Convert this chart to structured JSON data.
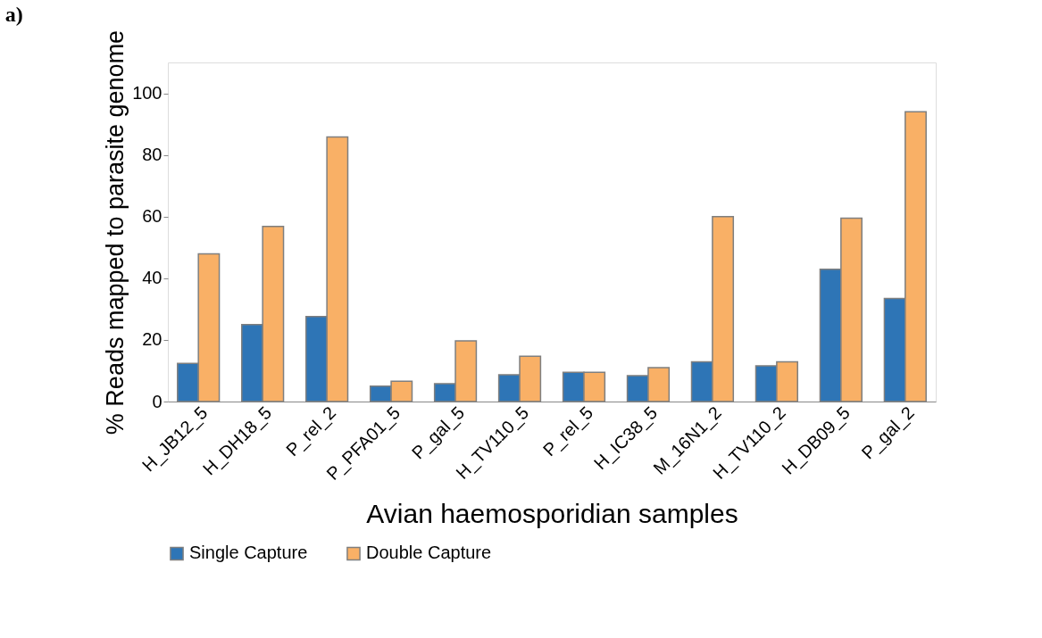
{
  "chart_data": {
    "type": "bar",
    "xlabel": "Avian haemosporidian samples",
    "ylabel": "% Reads mapped to parasite genome",
    "categories": [
      "H_JB12_5",
      "H_DH18_5",
      "P_rel_2",
      "P_PFA01_5",
      "P_gal_5",
      "H_TV110_5",
      "P_rel_5",
      "H_IC38_5",
      "M_16N1_2",
      "H_TV110_2",
      "H_DB09_5",
      "P_gal_2"
    ],
    "series": [
      {
        "name": "Single Capture",
        "color": "#2e75b6",
        "values": [
          12.4,
          25,
          27.6,
          5,
          5.8,
          8.7,
          9.5,
          8.4,
          12.9,
          11.6,
          42.9,
          33.4
        ]
      },
      {
        "name": "Double Capture",
        "color": "#f9b066",
        "values": [
          47.9,
          56.8,
          85.8,
          6.6,
          19.7,
          14.7,
          9.5,
          11,
          60,
          12.9,
          59.5,
          94
        ]
      }
    ],
    "ylim": [
      0,
      110
    ],
    "yticks": [
      0,
      20,
      40,
      60,
      80,
      100
    ],
    "grid": false,
    "legend": "bottom",
    "annotations": [
      "a)"
    ]
  }
}
